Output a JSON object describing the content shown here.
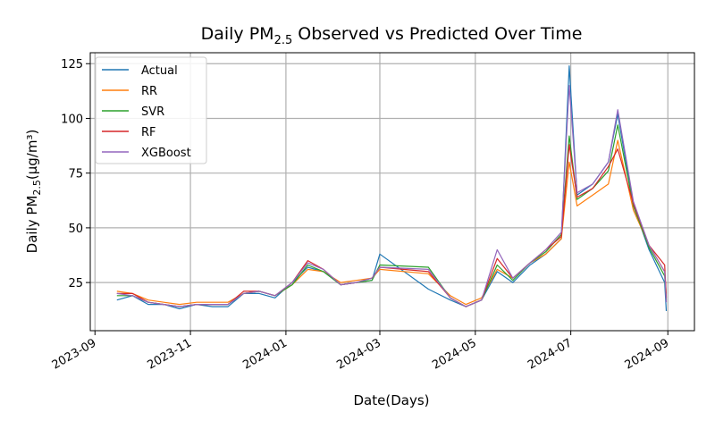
{
  "chart_data": {
    "type": "line",
    "title": {
      "main": "Daily PM",
      "sub": "2.5",
      "rest": " Observed vs Predicted Over Time"
    },
    "xlabel": "Date(Days)",
    "ylabel": {
      "main": "Daily PM",
      "sub": "2.5",
      "rest": "(μg/m³)"
    },
    "xlim": [
      "2023-08-29",
      "2024-09-18"
    ],
    "ylim": [
      3,
      130
    ],
    "x_ticks": [
      "2023-09",
      "2023-11",
      "2024-01",
      "2024-03",
      "2024-05",
      "2024-07",
      "2024-09"
    ],
    "y_ticks": [
      25,
      50,
      75,
      100,
      125
    ],
    "grid": true,
    "legend_position": "upper-left",
    "series": [
      {
        "name": "Actual",
        "color": "#1f77b4",
        "points": [
          [
            "2023-09-15",
            17
          ],
          [
            "2023-09-25",
            19
          ],
          [
            "2023-10-05",
            15
          ],
          [
            "2023-10-15",
            15
          ],
          [
            "2023-10-25",
            13
          ],
          [
            "2023-11-05",
            15
          ],
          [
            "2023-11-15",
            14
          ],
          [
            "2023-11-25",
            14
          ],
          [
            "2023-12-05",
            20
          ],
          [
            "2023-12-15",
            20
          ],
          [
            "2023-12-25",
            18
          ],
          [
            "2024-01-05",
            25
          ],
          [
            "2024-01-15",
            32
          ],
          [
            "2024-01-25",
            30
          ],
          [
            "2024-02-05",
            24
          ],
          [
            "2024-02-15",
            25
          ],
          [
            "2024-02-25",
            26
          ],
          [
            "2024-03-01",
            38
          ],
          [
            "2024-04-01",
            22
          ],
          [
            "2024-04-15",
            17
          ],
          [
            "2024-04-25",
            14
          ],
          [
            "2024-05-05",
            17
          ],
          [
            "2024-05-15",
            30
          ],
          [
            "2024-05-25",
            25
          ],
          [
            "2024-06-05",
            33
          ],
          [
            "2024-06-15",
            38
          ],
          [
            "2024-06-25",
            45
          ],
          [
            "2024-06-30",
            124
          ],
          [
            "2024-07-05",
            65
          ],
          [
            "2024-07-15",
            70
          ],
          [
            "2024-07-25",
            80
          ],
          [
            "2024-07-31",
            102
          ],
          [
            "2024-08-10",
            60
          ],
          [
            "2024-08-20",
            40
          ],
          [
            "2024-08-30",
            25
          ],
          [
            "2024-08-31",
            12
          ]
        ]
      },
      {
        "name": "RR",
        "color": "#ff7f0e",
        "points": [
          [
            "2023-09-15",
            21
          ],
          [
            "2023-09-25",
            20
          ],
          [
            "2023-10-05",
            17
          ],
          [
            "2023-10-15",
            16
          ],
          [
            "2023-10-25",
            15
          ],
          [
            "2023-11-05",
            16
          ],
          [
            "2023-11-15",
            16
          ],
          [
            "2023-11-25",
            16
          ],
          [
            "2023-12-05",
            20
          ],
          [
            "2023-12-15",
            21
          ],
          [
            "2023-12-25",
            19
          ],
          [
            "2024-01-05",
            24
          ],
          [
            "2024-01-15",
            31
          ],
          [
            "2024-01-25",
            30
          ],
          [
            "2024-02-05",
            25
          ],
          [
            "2024-02-15",
            26
          ],
          [
            "2024-02-25",
            27
          ],
          [
            "2024-03-01",
            31
          ],
          [
            "2024-04-01",
            29
          ],
          [
            "2024-04-15",
            19
          ],
          [
            "2024-04-25",
            15
          ],
          [
            "2024-05-05",
            18
          ],
          [
            "2024-05-15",
            31
          ],
          [
            "2024-05-25",
            27
          ],
          [
            "2024-06-05",
            34
          ],
          [
            "2024-06-15",
            38
          ],
          [
            "2024-06-25",
            45
          ],
          [
            "2024-06-30",
            80
          ],
          [
            "2024-07-05",
            60
          ],
          [
            "2024-07-15",
            65
          ],
          [
            "2024-07-25",
            70
          ],
          [
            "2024-07-31",
            90
          ],
          [
            "2024-08-10",
            58
          ],
          [
            "2024-08-20",
            42
          ],
          [
            "2024-08-30",
            30
          ],
          [
            "2024-08-31",
            20
          ]
        ]
      },
      {
        "name": "SVR",
        "color": "#2ca02c",
        "points": [
          [
            "2023-09-15",
            19
          ],
          [
            "2023-09-25",
            19
          ],
          [
            "2023-10-05",
            16
          ],
          [
            "2023-10-15",
            15
          ],
          [
            "2023-10-25",
            14
          ],
          [
            "2023-11-05",
            15
          ],
          [
            "2023-11-15",
            15
          ],
          [
            "2023-11-25",
            15
          ],
          [
            "2023-12-05",
            20
          ],
          [
            "2023-12-15",
            21
          ],
          [
            "2023-12-25",
            19
          ],
          [
            "2024-01-05",
            24
          ],
          [
            "2024-01-15",
            33
          ],
          [
            "2024-01-25",
            30
          ],
          [
            "2024-02-05",
            24
          ],
          [
            "2024-02-15",
            25
          ],
          [
            "2024-02-25",
            26
          ],
          [
            "2024-03-01",
            33
          ],
          [
            "2024-04-01",
            32
          ],
          [
            "2024-04-15",
            18
          ],
          [
            "2024-04-25",
            14
          ],
          [
            "2024-05-05",
            17
          ],
          [
            "2024-05-15",
            33
          ],
          [
            "2024-05-25",
            26
          ],
          [
            "2024-06-05",
            34
          ],
          [
            "2024-06-15",
            39
          ],
          [
            "2024-06-25",
            47
          ],
          [
            "2024-06-30",
            92
          ],
          [
            "2024-07-05",
            63
          ],
          [
            "2024-07-15",
            68
          ],
          [
            "2024-07-25",
            76
          ],
          [
            "2024-07-31",
            97
          ],
          [
            "2024-08-10",
            60
          ],
          [
            "2024-08-20",
            41
          ],
          [
            "2024-08-30",
            28
          ],
          [
            "2024-08-31",
            17
          ]
        ]
      },
      {
        "name": "RF",
        "color": "#d62728",
        "points": [
          [
            "2023-09-15",
            20
          ],
          [
            "2023-09-25",
            20
          ],
          [
            "2023-10-05",
            16
          ],
          [
            "2023-10-15",
            15
          ],
          [
            "2023-10-25",
            14
          ],
          [
            "2023-11-05",
            15
          ],
          [
            "2023-11-15",
            15
          ],
          [
            "2023-11-25",
            15
          ],
          [
            "2023-12-05",
            21
          ],
          [
            "2023-12-15",
            21
          ],
          [
            "2023-12-25",
            19
          ],
          [
            "2024-01-05",
            25
          ],
          [
            "2024-01-15",
            35
          ],
          [
            "2024-01-25",
            31
          ],
          [
            "2024-02-05",
            24
          ],
          [
            "2024-02-15",
            25
          ],
          [
            "2024-02-25",
            27
          ],
          [
            "2024-03-01",
            32
          ],
          [
            "2024-04-01",
            30
          ],
          [
            "2024-04-15",
            18
          ],
          [
            "2024-04-25",
            14
          ],
          [
            "2024-05-05",
            17
          ],
          [
            "2024-05-15",
            36
          ],
          [
            "2024-05-25",
            27
          ],
          [
            "2024-06-05",
            34
          ],
          [
            "2024-06-15",
            40
          ],
          [
            "2024-06-25",
            46
          ],
          [
            "2024-06-30",
            88
          ],
          [
            "2024-07-05",
            64
          ],
          [
            "2024-07-15",
            68
          ],
          [
            "2024-07-25",
            78
          ],
          [
            "2024-07-31",
            86
          ],
          [
            "2024-08-10",
            61
          ],
          [
            "2024-08-20",
            42
          ],
          [
            "2024-08-30",
            33
          ],
          [
            "2024-08-31",
            18
          ]
        ]
      },
      {
        "name": "XGBoost",
        "color": "#9467bd",
        "points": [
          [
            "2023-09-15",
            20
          ],
          [
            "2023-09-25",
            19
          ],
          [
            "2023-10-05",
            16
          ],
          [
            "2023-10-15",
            15
          ],
          [
            "2023-10-25",
            14
          ],
          [
            "2023-11-05",
            15
          ],
          [
            "2023-11-15",
            15
          ],
          [
            "2023-11-25",
            15
          ],
          [
            "2023-12-05",
            20
          ],
          [
            "2023-12-15",
            21
          ],
          [
            "2023-12-25",
            19
          ],
          [
            "2024-01-05",
            25
          ],
          [
            "2024-01-15",
            34
          ],
          [
            "2024-01-25",
            31
          ],
          [
            "2024-02-05",
            24
          ],
          [
            "2024-02-15",
            25
          ],
          [
            "2024-02-25",
            27
          ],
          [
            "2024-03-01",
            32
          ],
          [
            "2024-04-01",
            31
          ],
          [
            "2024-04-15",
            18
          ],
          [
            "2024-04-25",
            14
          ],
          [
            "2024-05-05",
            17
          ],
          [
            "2024-05-15",
            40
          ],
          [
            "2024-05-25",
            27
          ],
          [
            "2024-06-05",
            34
          ],
          [
            "2024-06-15",
            40
          ],
          [
            "2024-06-25",
            48
          ],
          [
            "2024-06-30",
            115
          ],
          [
            "2024-07-05",
            66
          ],
          [
            "2024-07-15",
            70
          ],
          [
            "2024-07-25",
            80
          ],
          [
            "2024-07-31",
            104
          ],
          [
            "2024-08-10",
            62
          ],
          [
            "2024-08-20",
            42
          ],
          [
            "2024-08-30",
            30
          ],
          [
            "2024-08-31",
            16
          ]
        ]
      }
    ]
  }
}
